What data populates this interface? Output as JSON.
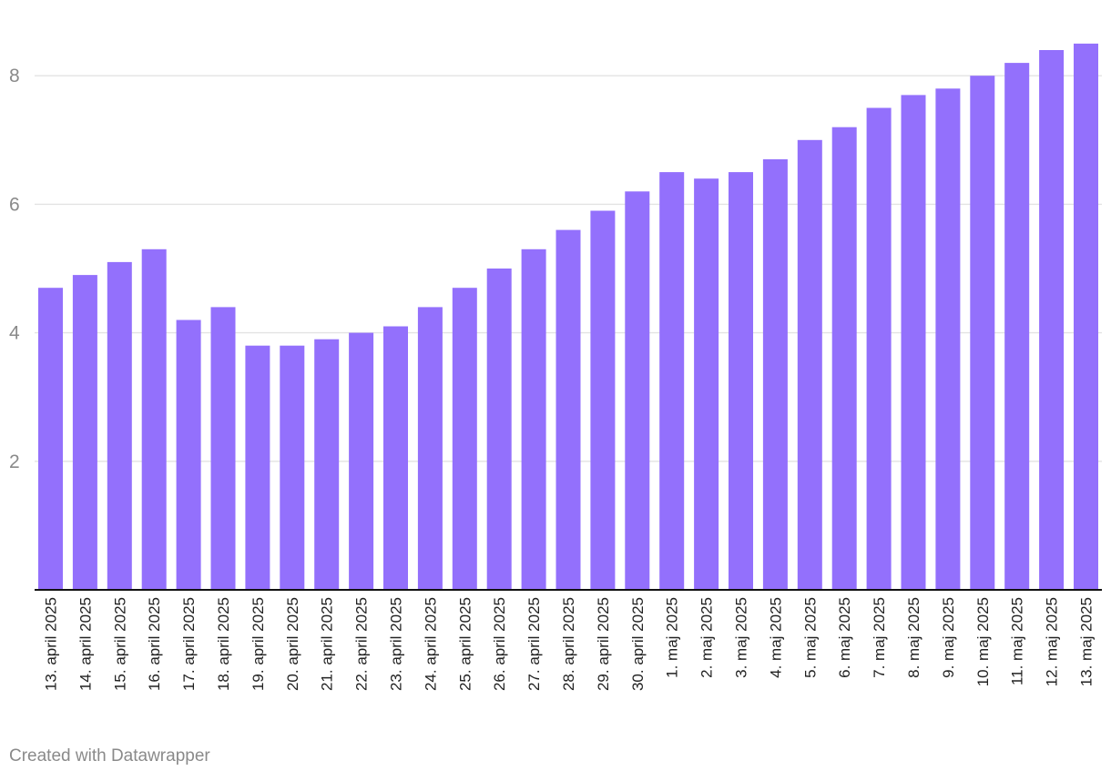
{
  "chart_data": {
    "type": "bar",
    "categories": [
      "13. april 2025",
      "14. april 2025",
      "15. april 2025",
      "16. april 2025",
      "17. april 2025",
      "18. april 2025",
      "19. april 2025",
      "20. april 2025",
      "21. april 2025",
      "22. april 2025",
      "23. april 2025",
      "24. april 2025",
      "25. april 2025",
      "26. april 2025",
      "27. april 2025",
      "28. april 2025",
      "29. april 2025",
      "30. april 2025",
      "1. maj 2025",
      "2. maj 2025",
      "3. maj 2025",
      "4. maj 2025",
      "5. maj 2025",
      "6. maj 2025",
      "7. maj 2025",
      "8. maj 2025",
      "9. maj 2025",
      "10. maj 2025",
      "11. maj 2025",
      "12. maj 2025",
      "13. maj 2025"
    ],
    "values": [
      4.7,
      4.9,
      5.1,
      5.3,
      4.2,
      4.4,
      3.8,
      3.8,
      3.9,
      4.0,
      4.1,
      4.4,
      4.7,
      5.0,
      5.3,
      5.6,
      5.9,
      6.2,
      6.5,
      6.4,
      6.5,
      6.7,
      7.0,
      7.2,
      7.5,
      7.7,
      7.8,
      8.0,
      8.2,
      8.4,
      8.5
    ],
    "yticks": [
      2,
      4,
      6,
      8
    ],
    "ylim": [
      0,
      8.5
    ],
    "title": "",
    "xlabel": "",
    "ylabel": "",
    "bar_color": "#9370fc",
    "grid": true
  },
  "footer": {
    "credit": "Created with Datawrapper"
  }
}
